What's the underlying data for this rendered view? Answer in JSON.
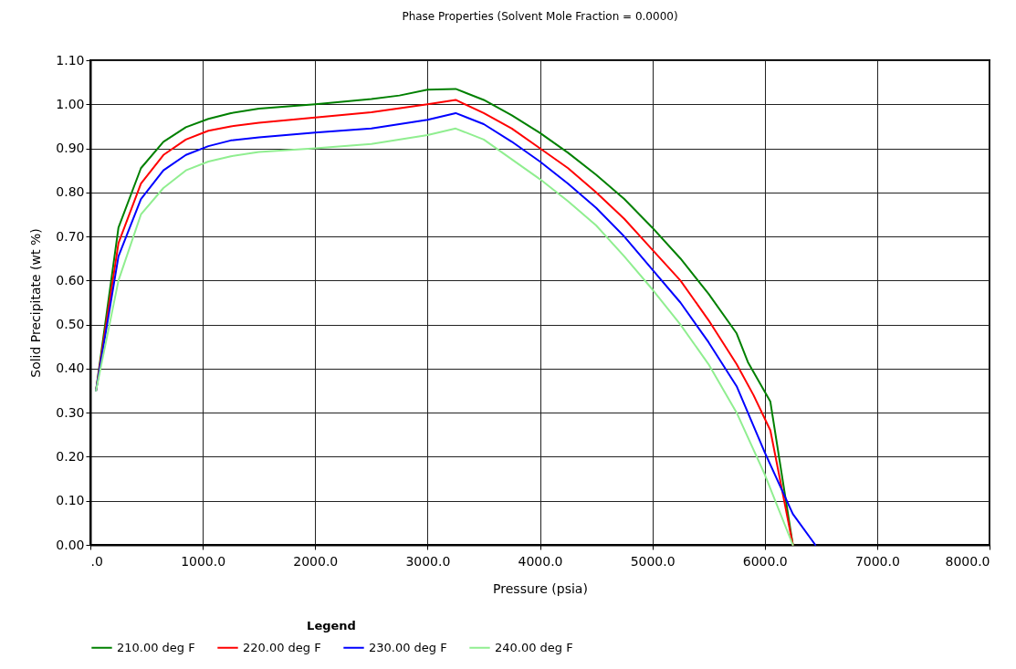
{
  "chart_data": {
    "type": "line",
    "title": "Phase Properties (Solvent Mole Fraction = 0.0000)",
    "xlabel": "Pressure (psia)",
    "ylabel": "Solid Precipitate (wt %)",
    "legend_title": "Legend",
    "legend": "bottom",
    "grid": true,
    "marker": "none",
    "line_style": "solid",
    "xlim": [
      0,
      8000
    ],
    "xticks": [
      {
        "value": 0,
        "label": ".0"
      },
      {
        "value": 1000,
        "label": "1000.0"
      },
      {
        "value": 2000,
        "label": "2000.0"
      },
      {
        "value": 3000,
        "label": "3000.0"
      },
      {
        "value": 4000,
        "label": "4000.0"
      },
      {
        "value": 5000,
        "label": "5000.0"
      },
      {
        "value": 6000,
        "label": "6000.0"
      },
      {
        "value": 7000,
        "label": "7000.0"
      },
      {
        "value": 8000,
        "label": "8000.0"
      }
    ],
    "ylim": [
      0,
      1.1
    ],
    "yticks": [
      {
        "value": 0,
        "label": "0.00"
      },
      {
        "value": 0.1,
        "label": "0.10"
      },
      {
        "value": 0.2,
        "label": "0.20"
      },
      {
        "value": 0.3,
        "label": "0.30"
      },
      {
        "value": 0.4,
        "label": "0.40"
      },
      {
        "value": 0.5,
        "label": "0.50"
      },
      {
        "value": 0.6,
        "label": "0.60"
      },
      {
        "value": 0.7,
        "label": "0.70"
      },
      {
        "value": 0.8,
        "label": "0.80"
      },
      {
        "value": 0.9,
        "label": "0.90"
      },
      {
        "value": 1.0,
        "label": "1.00"
      },
      {
        "value": 1.1,
        "label": "1.10"
      }
    ],
    "series": [
      {
        "name": "210.00 deg F",
        "color": "#008000",
        "x": [
          50,
          250,
          450,
          650,
          850,
          1050,
          1250,
          1500,
          2000,
          2500,
          2750,
          3000,
          3250,
          3500,
          3750,
          4000,
          4250,
          4500,
          4750,
          5000,
          5250,
          5500,
          5750,
          5850,
          6050,
          6250
        ],
        "values": [
          0.35,
          0.72,
          0.855,
          0.915,
          0.948,
          0.967,
          0.98,
          0.99,
          1.0,
          1.012,
          1.02,
          1.033,
          1.035,
          1.01,
          0.975,
          0.935,
          0.89,
          0.84,
          0.785,
          0.72,
          0.65,
          0.57,
          0.48,
          0.415,
          0.325,
          0.0
        ]
      },
      {
        "name": "220.00 deg F",
        "color": "#ff0000",
        "x": [
          50,
          250,
          450,
          650,
          850,
          1050,
          1250,
          1500,
          2000,
          2500,
          3000,
          3250,
          3500,
          3750,
          4000,
          4250,
          4500,
          4750,
          5000,
          5250,
          5500,
          5750,
          5900,
          6050,
          6250
        ],
        "values": [
          0.35,
          0.685,
          0.82,
          0.885,
          0.92,
          0.94,
          0.95,
          0.958,
          0.97,
          0.982,
          1.0,
          1.01,
          0.98,
          0.945,
          0.9,
          0.855,
          0.8,
          0.74,
          0.67,
          0.6,
          0.51,
          0.41,
          0.34,
          0.26,
          0.0
        ]
      },
      {
        "name": "230.00 deg F",
        "color": "#0000ff",
        "x": [
          50,
          250,
          450,
          650,
          850,
          1050,
          1250,
          1500,
          2000,
          2500,
          3000,
          3250,
          3500,
          3750,
          4000,
          4250,
          4500,
          4750,
          5000,
          5250,
          5500,
          5750,
          6000,
          6250,
          6450
        ],
        "values": [
          0.35,
          0.655,
          0.785,
          0.85,
          0.885,
          0.905,
          0.918,
          0.925,
          0.936,
          0.945,
          0.965,
          0.98,
          0.955,
          0.915,
          0.87,
          0.82,
          0.765,
          0.7,
          0.625,
          0.55,
          0.46,
          0.36,
          0.21,
          0.07,
          0.0
        ]
      },
      {
        "name": "240.00 deg F",
        "color": "#90ee90",
        "x": [
          50,
          250,
          450,
          650,
          850,
          1050,
          1250,
          1500,
          2000,
          2500,
          3000,
          3250,
          3500,
          3750,
          4000,
          4250,
          4500,
          4750,
          5000,
          5250,
          5500,
          5750,
          6000,
          6250
        ],
        "values": [
          0.35,
          0.6,
          0.75,
          0.81,
          0.85,
          0.87,
          0.882,
          0.892,
          0.9,
          0.91,
          0.93,
          0.945,
          0.92,
          0.875,
          0.83,
          0.78,
          0.725,
          0.655,
          0.58,
          0.5,
          0.41,
          0.3,
          0.16,
          0.0
        ]
      }
    ]
  }
}
